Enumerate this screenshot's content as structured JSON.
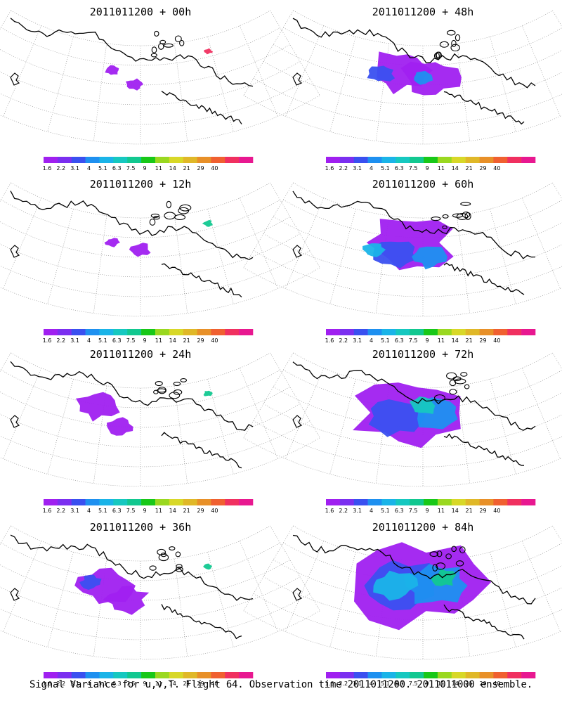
{
  "panels": [
    {
      "title": "2011011200 + 00h",
      "lead": "00h"
    },
    {
      "title": "2011011200 + 48h",
      "lead": "48h"
    },
    {
      "title": "2011011200 + 12h",
      "lead": "12h"
    },
    {
      "title": "2011011200 + 60h",
      "lead": "60h"
    },
    {
      "title": "2011011200 + 24h",
      "lead": "24h"
    },
    {
      "title": "2011011200 + 72h",
      "lead": "72h"
    },
    {
      "title": "2011011200 + 36h",
      "lead": "36h"
    },
    {
      "title": "2011011200 + 84h",
      "lead": "84h"
    }
  ],
  "colorbar": {
    "labels": [
      "1.6",
      "2.2",
      "3.1",
      "4",
      "5.1",
      "6.3",
      "7.5",
      "9",
      "11",
      "14",
      "21",
      "29",
      "40"
    ],
    "colors": [
      "#a020f0",
      "#7b2ff0",
      "#3a50f0",
      "#1e90f0",
      "#1ab4e8",
      "#16c8c0",
      "#12c890",
      "#18c818",
      "#9ad820",
      "#d8d828",
      "#e0b828",
      "#e89028",
      "#f06030",
      "#f03060",
      "#e81890"
    ]
  },
  "footer": "Signal Variance for u,v,T. Flight 64. Observation time 2011011200. 2011011000 ensemble."
}
